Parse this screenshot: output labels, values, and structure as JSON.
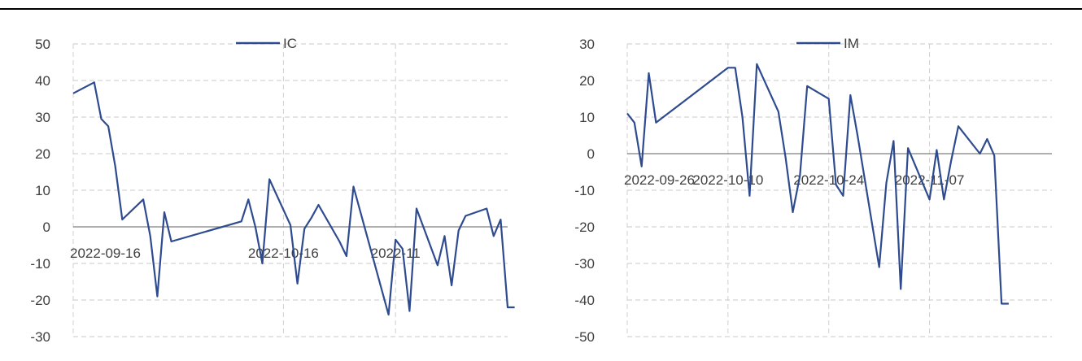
{
  "header": {
    "title_fragment": ""
  },
  "chart_data": [
    {
      "type": "line",
      "x_ticks": [
        "2022-09-16",
        "2022-10-16",
        "2022-11"
      ],
      "xlim": [
        "2022-09-16",
        "2022-11-17"
      ],
      "ylim": [
        -30,
        50
      ],
      "yticks": [
        -30,
        -20,
        -10,
        0,
        10,
        20,
        30,
        40,
        50
      ],
      "grid": true,
      "legend": "top-center",
      "series": [
        {
          "name": "IC",
          "color": "#2f4b8f",
          "points": [
            [
              "2022-09-16",
              36.5
            ],
            [
              "2022-09-19",
              39.5
            ],
            [
              "2022-09-20",
              29.5
            ],
            [
              "2022-09-21",
              27.5
            ],
            [
              "2022-09-22",
              16.5
            ],
            [
              "2022-09-23",
              2
            ],
            [
              "2022-09-26",
              7.5
            ],
            [
              "2022-09-27",
              -2.5
            ],
            [
              "2022-09-28",
              -19
            ],
            [
              "2022-09-29",
              4
            ],
            [
              "2022-09-30",
              -4
            ],
            [
              "2022-10-10",
              1.5
            ],
            [
              "2022-10-11",
              7.5
            ],
            [
              "2022-10-12",
              0
            ],
            [
              "2022-10-13",
              -10
            ],
            [
              "2022-10-14",
              13
            ],
            [
              "2022-10-17",
              0.5
            ],
            [
              "2022-10-18",
              -15.5
            ],
            [
              "2022-10-19",
              -0.5
            ],
            [
              "2022-10-20",
              2.5
            ],
            [
              "2022-10-21",
              6
            ],
            [
              "2022-10-24",
              -4
            ],
            [
              "2022-10-25",
              -8
            ],
            [
              "2022-10-26",
              11
            ],
            [
              "2022-10-31",
              -24
            ],
            [
              "2022-11-01",
              -3.5
            ],
            [
              "2022-11-02",
              -6
            ],
            [
              "2022-11-03",
              -23
            ],
            [
              "2022-11-04",
              5
            ],
            [
              "2022-11-07",
              -10.5
            ],
            [
              "2022-11-08",
              -2.5
            ],
            [
              "2022-11-09",
              -16
            ],
            [
              "2022-11-10",
              -1
            ],
            [
              "2022-11-11",
              3
            ],
            [
              "2022-11-14",
              5
            ],
            [
              "2022-11-15",
              -2.5
            ],
            [
              "2022-11-16",
              2
            ],
            [
              "2022-11-17",
              -22
            ],
            [
              "2022-11-18",
              -22
            ]
          ]
        }
      ]
    },
    {
      "type": "line",
      "x_ticks": [
        "2022-09-26",
        "2022-10-10",
        "2022-10-24",
        "2022-11-07"
      ],
      "xlim": [
        "2022-09-26",
        "2022-11-24"
      ],
      "ylim": [
        -50,
        30
      ],
      "yticks": [
        -50,
        -40,
        -30,
        -20,
        -10,
        0,
        10,
        20,
        30
      ],
      "grid": true,
      "legend": "top-center",
      "series": [
        {
          "name": "IM",
          "color": "#2f4b8f",
          "points": [
            [
              "2022-09-26",
              11
            ],
            [
              "2022-09-27",
              8.5
            ],
            [
              "2022-09-28",
              -3.5
            ],
            [
              "2022-09-29",
              22
            ],
            [
              "2022-09-30",
              8.5
            ],
            [
              "2022-10-10",
              23.5
            ],
            [
              "2022-10-11",
              23.5
            ],
            [
              "2022-10-12",
              10
            ],
            [
              "2022-10-13",
              -11.5
            ],
            [
              "2022-10-14",
              24.5
            ],
            [
              "2022-10-17",
              11.5
            ],
            [
              "2022-10-18",
              -1
            ],
            [
              "2022-10-19",
              -16
            ],
            [
              "2022-10-20",
              -6
            ],
            [
              "2022-10-21",
              18.5
            ],
            [
              "2022-10-24",
              15
            ],
            [
              "2022-10-25",
              -8.5
            ],
            [
              "2022-10-26",
              -11.5
            ],
            [
              "2022-10-27",
              16
            ],
            [
              "2022-10-28",
              5
            ],
            [
              "2022-10-31",
              -31
            ],
            [
              "2022-11-01",
              -8
            ],
            [
              "2022-11-02",
              3.5
            ],
            [
              "2022-11-03",
              -37
            ],
            [
              "2022-11-04",
              1.5
            ],
            [
              "2022-11-07",
              -12.5
            ],
            [
              "2022-11-08",
              1
            ],
            [
              "2022-11-09",
              -12.5
            ],
            [
              "2022-11-10",
              -2
            ],
            [
              "2022-11-11",
              7.5
            ],
            [
              "2022-11-14",
              0
            ],
            [
              "2022-11-15",
              4
            ],
            [
              "2022-11-16",
              -0.5
            ],
            [
              "2022-11-17",
              -41
            ],
            [
              "2022-11-18",
              -41
            ]
          ]
        }
      ]
    }
  ]
}
